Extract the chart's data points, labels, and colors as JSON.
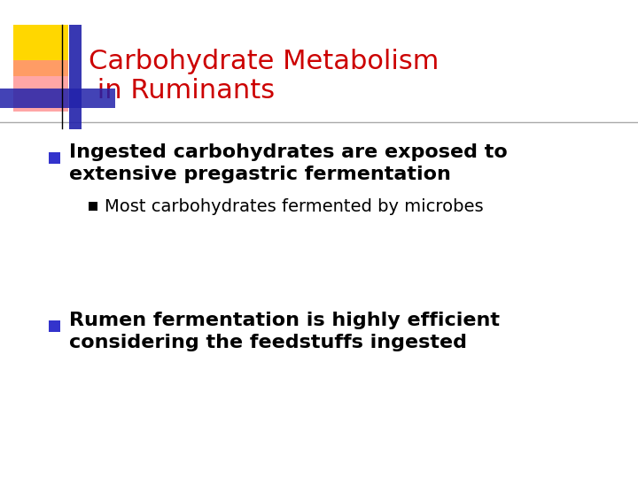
{
  "title_line1": "Carbohydrate Metabolism",
  "title_line2": " in Ruminants",
  "title_color": "#CC0000",
  "title_fontsize": 22,
  "background_color": "#FFFFFF",
  "separator_color": "#AAAAAA",
  "bullet1_text_line1": "Ingested carbohydrates are exposed to",
  "bullet1_text_line2": "extensive pregastric fermentation",
  "sub_bullet_text": "Most carbohydrates fermented by microbes",
  "bullet2_text_line1": "Rumen fermentation is highly efficient",
  "bullet2_text_line2": "considering the feedstuffs ingested",
  "bullet_color": "#3333CC",
  "body_fontsize": 16,
  "sub_fontsize": 14,
  "body_color": "#000000",
  "deco_yellow": "#FFD700",
  "deco_pink": "#FF8888",
  "deco_blue": "#2222AA"
}
